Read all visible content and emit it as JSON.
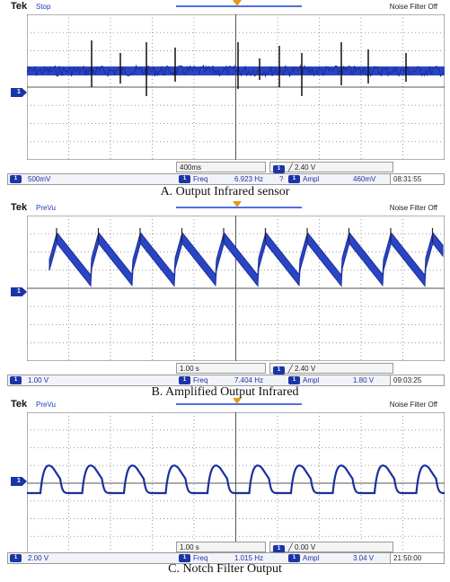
{
  "panels": [
    {
      "brand": "Tek",
      "state": "Stop",
      "filter": "Noise Filter Off",
      "timebase": "400ms",
      "trigger": "╱ 2.40 V",
      "channel": "1",
      "scale": "500mV",
      "freq_label": "Freq",
      "freq_value": "6.923 Hz",
      "freq_flag": "?",
      "ampl_label": "Ampl",
      "ampl_value": "460mV",
      "clock": "08:31:55",
      "caption": "A. Output Infrared sensor"
    },
    {
      "brand": "Tek",
      "state": "PreVu",
      "filter": "Noise Filter Off",
      "timebase": "1.00 s",
      "trigger": "╱ 2.40 V",
      "channel": "1",
      "scale": "1.00 V",
      "freq_label": "Freq",
      "freq_value": "7.404 Hz",
      "ampl_label": "Ampl",
      "ampl_value": "1.80 V",
      "clock": "09:03:25",
      "caption": "B. Amplified Output Infrared"
    },
    {
      "brand": "Tek",
      "state": "PreVu",
      "filter": "Noise Filter Off",
      "timebase": "1.00 s",
      "trigger": "╱ 0.00 V",
      "channel": "1",
      "scale": "2.00 V",
      "freq_label": "Freq",
      "freq_value": "1.015 Hz",
      "ampl_label": "Ampl",
      "ampl_value": "3.04 V",
      "clock": "21:50:00",
      "caption": "C. Notch Filter Output"
    }
  ],
  "colors": {
    "trace": "#1b2f9c",
    "trace_fill": "#2a45c4",
    "grid_dot": "#9a9a9a",
    "screen_bg": "#ffffff",
    "channel_badge": "#1b34a8",
    "trigger_marker": "#e29b18"
  }
}
